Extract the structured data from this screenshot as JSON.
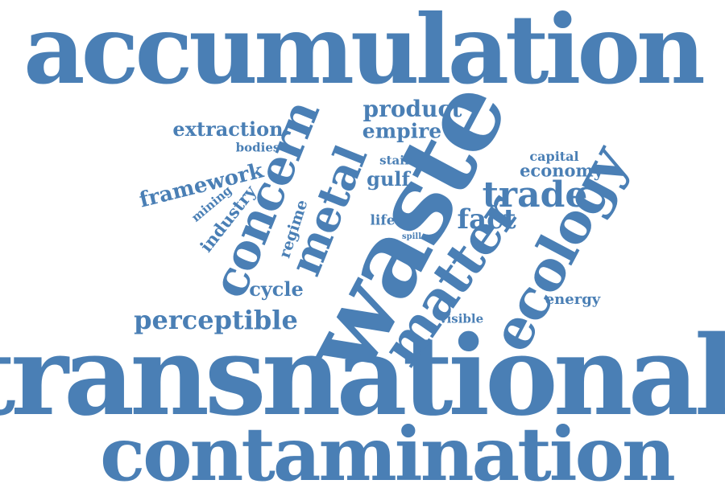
{
  "colors": {
    "background": "#ffffff",
    "word": "#4a7fb5"
  },
  "words": {
    "accumulation": "accumulation",
    "transnational": "transnational",
    "contamination": "contamination",
    "waste": "waste",
    "concern": "concern",
    "metal": "metal",
    "matter": "matter",
    "ecology": "ecology",
    "trade": "trade",
    "perceptible": "perceptible",
    "product": "product",
    "empire": "empire",
    "extraction": "extraction",
    "fact": "fact",
    "economy": "economy",
    "cycle": "cycle",
    "gulf": "gulf",
    "capital": "capital",
    "energy": "energy",
    "visible": "visible",
    "life": "life",
    "stain": "stain",
    "bodies": "bodies",
    "spill": "spill",
    "framework": "framework",
    "mining": "mining",
    "industry": "industry",
    "regime": "regime"
  }
}
